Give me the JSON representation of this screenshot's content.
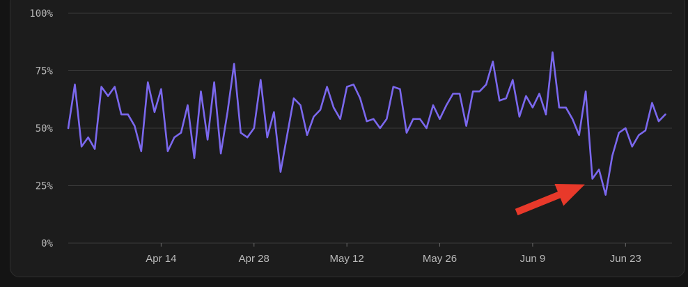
{
  "chart_data": {
    "type": "line",
    "title": "",
    "xlabel": "",
    "ylabel": "",
    "ylim": [
      0,
      100
    ],
    "yticks": [
      {
        "value": 0,
        "label": "0%"
      },
      {
        "value": 25,
        "label": "25%"
      },
      {
        "value": 50,
        "label": "50%"
      },
      {
        "value": 75,
        "label": "75%"
      },
      {
        "value": 100,
        "label": "100%"
      }
    ],
    "xlim": [
      "2025-03-31",
      "2025-06-30"
    ],
    "xticks": [
      {
        "value": "2025-04-14",
        "label": "Apr 14"
      },
      {
        "value": "2025-04-28",
        "label": "Apr 28"
      },
      {
        "value": "2025-05-12",
        "label": "May 12"
      },
      {
        "value": "2025-05-26",
        "label": "May 26"
      },
      {
        "value": "2025-06-09",
        "label": "Jun 9"
      },
      {
        "value": "2025-06-23",
        "label": "Jun 23"
      }
    ],
    "grid": true,
    "legend": "none",
    "series": [
      {
        "color": "#7b68ee",
        "x": [
          "2025-03-31",
          "2025-04-01",
          "2025-04-02",
          "2025-04-03",
          "2025-04-04",
          "2025-04-05",
          "2025-04-06",
          "2025-04-07",
          "2025-04-08",
          "2025-04-09",
          "2025-04-10",
          "2025-04-11",
          "2025-04-12",
          "2025-04-13",
          "2025-04-14",
          "2025-04-15",
          "2025-04-16",
          "2025-04-17",
          "2025-04-18",
          "2025-04-19",
          "2025-04-20",
          "2025-04-21",
          "2025-04-22",
          "2025-04-23",
          "2025-04-24",
          "2025-04-25",
          "2025-04-26",
          "2025-04-27",
          "2025-04-28",
          "2025-04-29",
          "2025-04-30",
          "2025-05-01",
          "2025-05-02",
          "2025-05-03",
          "2025-05-04",
          "2025-05-05",
          "2025-05-06",
          "2025-05-07",
          "2025-05-08",
          "2025-05-09",
          "2025-05-10",
          "2025-05-11",
          "2025-05-12",
          "2025-05-13",
          "2025-05-14",
          "2025-05-15",
          "2025-05-16",
          "2025-05-17",
          "2025-05-18",
          "2025-05-19",
          "2025-05-20",
          "2025-05-21",
          "2025-05-22",
          "2025-05-23",
          "2025-05-24",
          "2025-05-25",
          "2025-05-26",
          "2025-05-27",
          "2025-05-28",
          "2025-05-29",
          "2025-05-30",
          "2025-05-31",
          "2025-06-01",
          "2025-06-02",
          "2025-06-03",
          "2025-06-04",
          "2025-06-05",
          "2025-06-06",
          "2025-06-07",
          "2025-06-08",
          "2025-06-09",
          "2025-06-10",
          "2025-06-11",
          "2025-06-12",
          "2025-06-13",
          "2025-06-14",
          "2025-06-15",
          "2025-06-16",
          "2025-06-17",
          "2025-06-18",
          "2025-06-19",
          "2025-06-20",
          "2025-06-21",
          "2025-06-22",
          "2025-06-23",
          "2025-06-24",
          "2025-06-25",
          "2025-06-26",
          "2025-06-27",
          "2025-06-28",
          "2025-06-29"
        ],
        "y": [
          50,
          69,
          42,
          46,
          41,
          68,
          64,
          68,
          56,
          56,
          51,
          40,
          70,
          57,
          67,
          40,
          46,
          48,
          60,
          37,
          66,
          45,
          70,
          39,
          57,
          78,
          48,
          46,
          50,
          71,
          46,
          57,
          31,
          47,
          63,
          60,
          47,
          55,
          58,
          68,
          59,
          54,
          68,
          69,
          63,
          53,
          54,
          50,
          54,
          68,
          67,
          48,
          54,
          54,
          50,
          60,
          54,
          60,
          65,
          65,
          51,
          66,
          66,
          69,
          79,
          62,
          63,
          71,
          55,
          64,
          59,
          65,
          56,
          83,
          59,
          59,
          54,
          47,
          66,
          28,
          32,
          21,
          38,
          48,
          50,
          42,
          47,
          49,
          61,
          53,
          56
        ]
      }
    ],
    "annotation": {
      "type": "arrow",
      "color": "#e8392a",
      "points_to": "2025-06-21"
    }
  }
}
